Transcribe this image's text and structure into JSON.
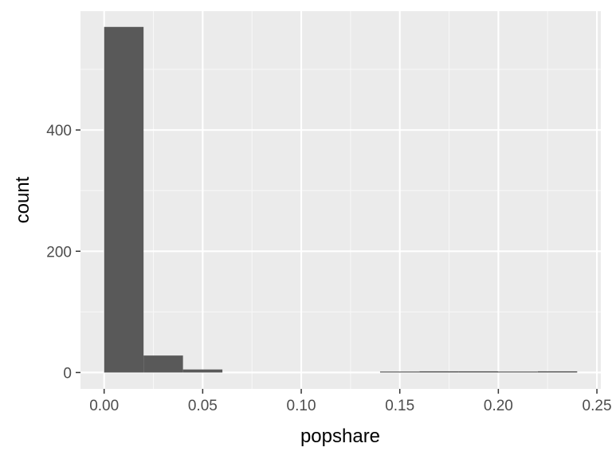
{
  "chart_data": {
    "type": "bar",
    "subtype": "histogram",
    "xlabel": "popshare",
    "ylabel": "count",
    "xlim": [
      -0.012,
      0.252
    ],
    "ylim": [
      -27,
      596
    ],
    "x_ticks": [
      0.0,
      0.05,
      0.1,
      0.15,
      0.2,
      0.25
    ],
    "x_tick_labels": [
      "0.00",
      "0.05",
      "0.10",
      "0.15",
      "0.20",
      "0.25"
    ],
    "y_ticks": [
      0,
      200,
      400
    ],
    "y_tick_labels": [
      "0",
      "200",
      "400"
    ],
    "bin_width": 0.02,
    "bins": [
      {
        "x0": 0.0,
        "x1": 0.02,
        "count": 570
      },
      {
        "x0": 0.02,
        "x1": 0.04,
        "count": 28
      },
      {
        "x0": 0.04,
        "x1": 0.06,
        "count": 5
      },
      {
        "x0": 0.06,
        "x1": 0.08,
        "count": 0
      },
      {
        "x0": 0.08,
        "x1": 0.1,
        "count": 0
      },
      {
        "x0": 0.1,
        "x1": 0.12,
        "count": 0
      },
      {
        "x0": 0.12,
        "x1": 0.14,
        "count": 0
      },
      {
        "x0": 0.14,
        "x1": 0.16,
        "count": 1
      },
      {
        "x0": 0.16,
        "x1": 0.18,
        "count": 2
      },
      {
        "x0": 0.18,
        "x1": 0.2,
        "count": 2
      },
      {
        "x0": 0.2,
        "x1": 0.22,
        "count": 1
      },
      {
        "x0": 0.22,
        "x1": 0.24,
        "count": 2
      }
    ],
    "grid": true,
    "colors": {
      "panel_background": "#ebebeb",
      "grid_major": "#ffffff",
      "grid_minor": "#f7f7f7",
      "bar_fill": "#595959",
      "tick_mark": "#333333"
    }
  }
}
